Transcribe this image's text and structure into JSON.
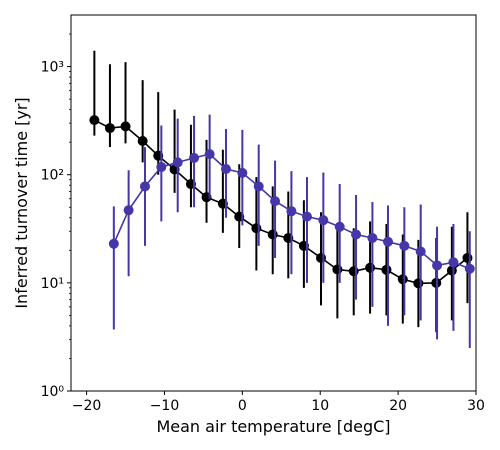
{
  "chart_data": {
    "type": "scatter",
    "title": "",
    "xlabel": "Mean air temperature [degC]",
    "ylabel": "Inferred turnover time [yr]",
    "xlim": [
      -22,
      30
    ],
    "ylim": [
      1,
      3000
    ],
    "yscale": "log",
    "grid": false,
    "x_ticks": [
      -20,
      -10,
      0,
      10,
      20,
      30
    ],
    "x_tick_labels": [
      "−20",
      "−10",
      "0",
      "10",
      "20",
      "30"
    ],
    "y_ticks": [
      1,
      10,
      100,
      1000
    ],
    "y_tick_labels": [
      "10⁰",
      "10¹",
      "10²",
      "10³"
    ],
    "series": [
      {
        "color": "#000000",
        "points": [
          {
            "x": -19,
            "y": 320,
            "lo": 230,
            "hi": 1400
          },
          {
            "x": -17,
            "y": 270,
            "lo": 180,
            "hi": 1050
          },
          {
            "x": -15,
            "y": 280,
            "lo": 195,
            "hi": 1100
          },
          {
            "x": -12.8,
            "y": 205,
            "lo": 130,
            "hi": 750
          },
          {
            "x": -10.8,
            "y": 150,
            "lo": 100,
            "hi": 580
          },
          {
            "x": -8.7,
            "y": 112,
            "lo": 68,
            "hi": 400
          },
          {
            "x": -6.6,
            "y": 82,
            "lo": 50,
            "hi": 290
          },
          {
            "x": -4.6,
            "y": 62,
            "lo": 36,
            "hi": 210
          },
          {
            "x": -2.5,
            "y": 54,
            "lo": 29,
            "hi": 170
          },
          {
            "x": -0.4,
            "y": 41,
            "lo": 21,
            "hi": 125
          },
          {
            "x": 1.8,
            "y": 32,
            "lo": 13,
            "hi": 95
          },
          {
            "x": 3.9,
            "y": 28,
            "lo": 12,
            "hi": 78
          },
          {
            "x": 5.9,
            "y": 26,
            "lo": 11,
            "hi": 70
          },
          {
            "x": 7.9,
            "y": 22,
            "lo": 9,
            "hi": 58
          },
          {
            "x": 10.1,
            "y": 17,
            "lo": 6.2,
            "hi": 45
          },
          {
            "x": 12.2,
            "y": 13.3,
            "lo": 4.7,
            "hi": 35
          },
          {
            "x": 14.3,
            "y": 12.8,
            "lo": 5,
            "hi": 32
          },
          {
            "x": 16.4,
            "y": 13.8,
            "lo": 5.2,
            "hi": 37
          },
          {
            "x": 18.5,
            "y": 13.2,
            "lo": 5,
            "hi": 35
          },
          {
            "x": 20.6,
            "y": 10.8,
            "lo": 4.2,
            "hi": 28
          },
          {
            "x": 22.6,
            "y": 9.9,
            "lo": 3.9,
            "hi": 25
          },
          {
            "x": 24.9,
            "y": 10,
            "lo": 3.5,
            "hi": 26
          },
          {
            "x": 26.9,
            "y": 13,
            "lo": 4.5,
            "hi": 33
          },
          {
            "x": 28.9,
            "y": 17,
            "lo": 6.5,
            "hi": 45
          }
        ]
      },
      {
        "color": "#4637a8",
        "points": [
          {
            "x": -16.5,
            "y": 23,
            "lo": 3.7,
            "hi": 51
          },
          {
            "x": -14.6,
            "y": 47,
            "lo": 11.5,
            "hi": 110
          },
          {
            "x": -12.5,
            "y": 78,
            "lo": 22,
            "hi": 180
          },
          {
            "x": -10.4,
            "y": 118,
            "lo": 37,
            "hi": 285
          },
          {
            "x": -8.3,
            "y": 130,
            "lo": 45,
            "hi": 330
          },
          {
            "x": -6.2,
            "y": 143,
            "lo": 50,
            "hi": 350
          },
          {
            "x": -4.2,
            "y": 155,
            "lo": 60,
            "hi": 360
          },
          {
            "x": -2.1,
            "y": 113,
            "lo": 40,
            "hi": 265
          },
          {
            "x": 0,
            "y": 104,
            "lo": 34,
            "hi": 260
          },
          {
            "x": 2.1,
            "y": 78,
            "lo": 22,
            "hi": 190
          },
          {
            "x": 4.2,
            "y": 57,
            "lo": 17,
            "hi": 135
          },
          {
            "x": 6.3,
            "y": 46,
            "lo": 12,
            "hi": 108
          },
          {
            "x": 8.3,
            "y": 41,
            "lo": 10,
            "hi": 95
          },
          {
            "x": 10.4,
            "y": 38,
            "lo": 10,
            "hi": 105
          },
          {
            "x": 12.5,
            "y": 33,
            "lo": 10,
            "hi": 82
          },
          {
            "x": 14.6,
            "y": 28,
            "lo": 7,
            "hi": 65
          },
          {
            "x": 16.7,
            "y": 26,
            "lo": 6,
            "hi": 56
          },
          {
            "x": 18.7,
            "y": 24,
            "lo": 4,
            "hi": 52
          },
          {
            "x": 20.8,
            "y": 22,
            "lo": 5,
            "hi": 50
          },
          {
            "x": 22.9,
            "y": 19.5,
            "lo": 4.5,
            "hi": 53
          },
          {
            "x": 25,
            "y": 14.5,
            "lo": 3,
            "hi": 33
          },
          {
            "x": 27.1,
            "y": 15.5,
            "lo": 3.6,
            "hi": 35
          },
          {
            "x": 29.2,
            "y": 13.5,
            "lo": 2.5,
            "hi": 30
          }
        ]
      }
    ]
  }
}
